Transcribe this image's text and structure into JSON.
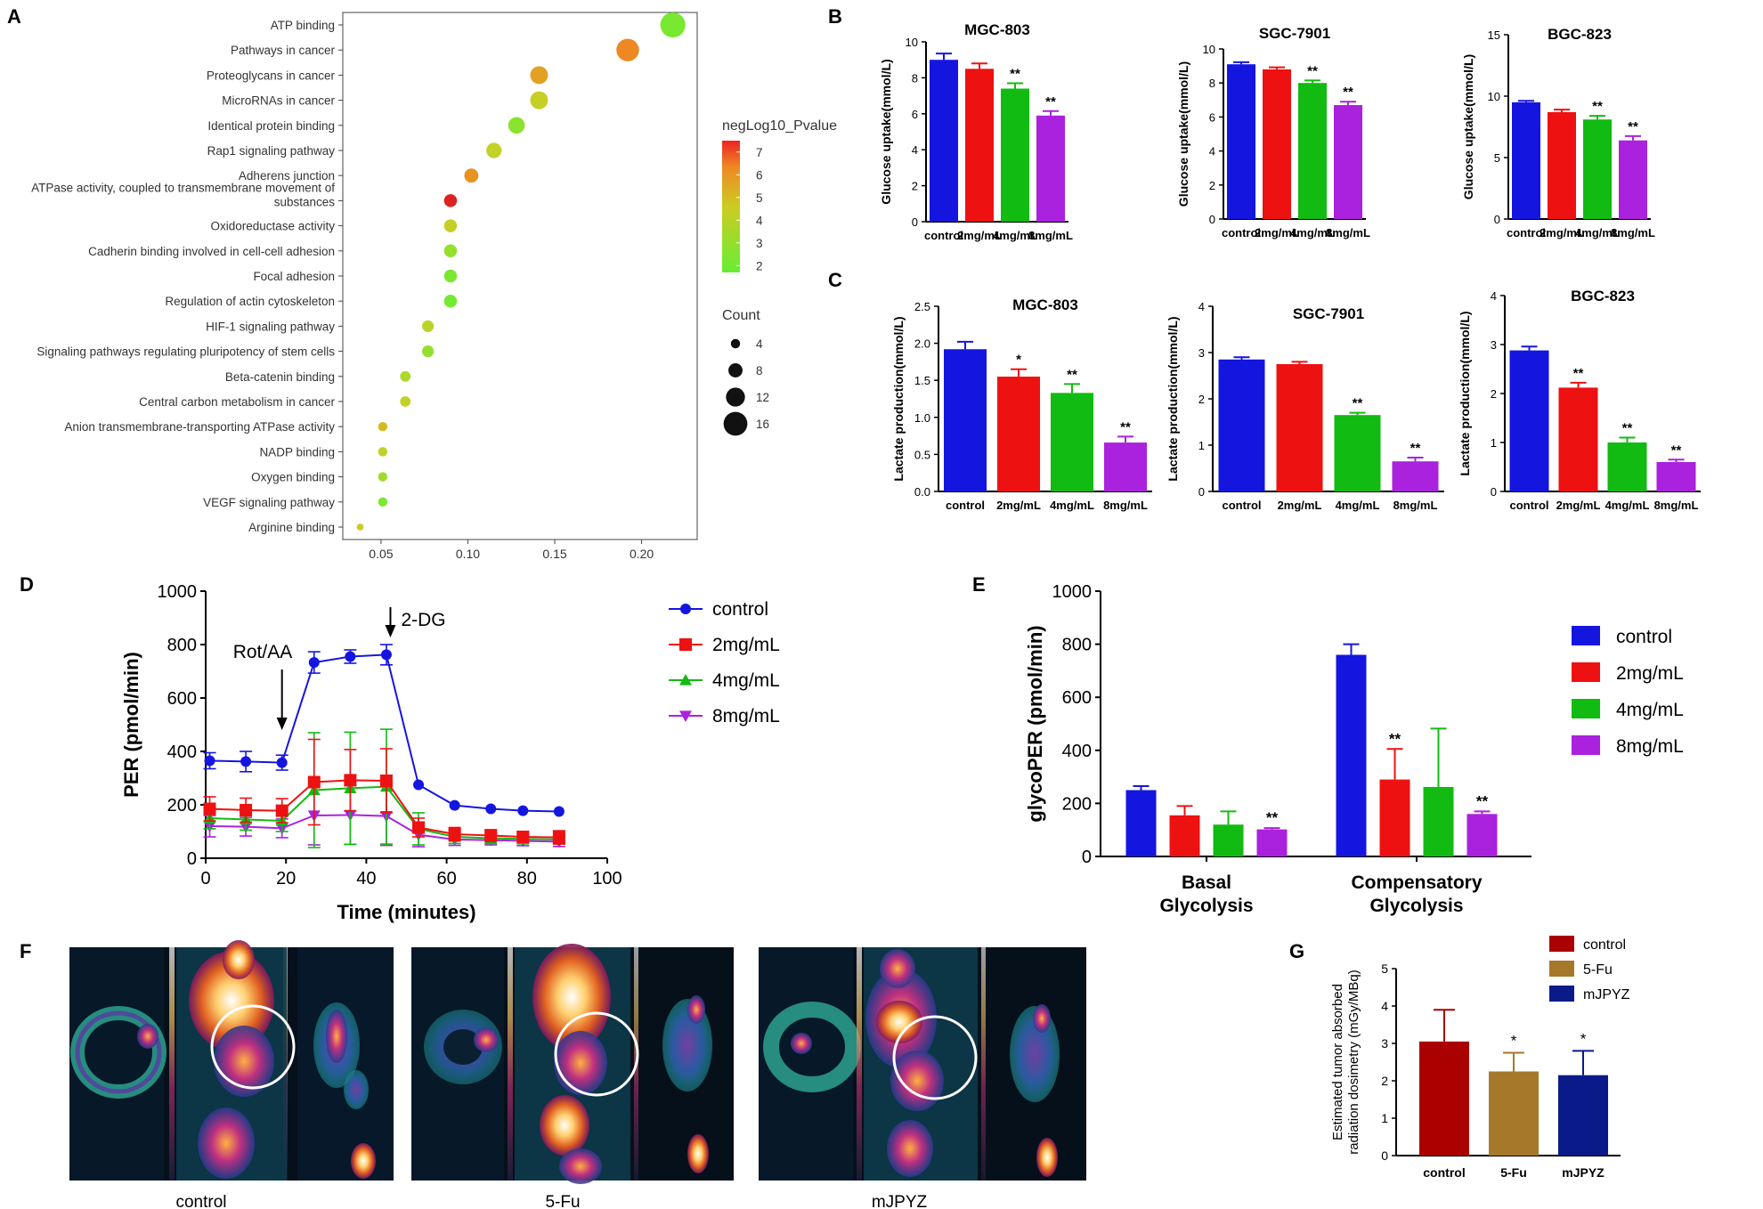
{
  "panels": {
    "A": {
      "letter": "A",
      "chart_data": {
        "type": "scatter",
        "categories": [
          "ATP binding",
          "Pathways in cancer",
          "Proteoglycans in cancer",
          "MicroRNAs in cancer",
          "Identical protein binding",
          "Rap1 signaling pathway",
          "Adherens junction",
          "ATPase activity, coupled to transmembrane movement of substances",
          "Oxidoreductase activity",
          "Cadherin binding involved in cell-cell adhesion",
          "Focal adhesion",
          "Regulation of actin cytoskeleton",
          "HIF-1 signaling pathway",
          "Signaling pathways regulating pluripotency of stem cells",
          "Beta-catenin binding",
          "Central carbon metabolism in cancer",
          "Anion transmembrane-transporting ATPase activity",
          "NADP binding",
          "Oxygen binding",
          "VEGF signaling pathway",
          "Arginine binding"
        ],
        "x": [
          0.218,
          0.192,
          0.141,
          0.141,
          0.128,
          0.115,
          0.102,
          0.09,
          0.09,
          0.09,
          0.09,
          0.09,
          0.077,
          0.077,
          0.064,
          0.064,
          0.051,
          0.051,
          0.051,
          0.051,
          0.038
        ],
        "count": [
          17,
          15,
          11,
          11,
          10,
          9,
          8,
          7,
          7,
          7,
          7,
          7,
          6,
          6,
          5,
          5,
          4,
          4,
          4,
          4,
          2
        ],
        "negLog10_Pvalue": [
          2.3,
          5.8,
          5.4,
          4.2,
          2.6,
          3.8,
          5.6,
          7.2,
          4.1,
          2.8,
          2.4,
          2.2,
          3.4,
          2.8,
          3.2,
          3.8,
          5.0,
          3.6,
          3.0,
          2.4,
          4.6
        ],
        "xticks": [
          0.05,
          0.1,
          0.15,
          0.2
        ],
        "xtick_labels": [
          "0.05",
          "0.10",
          "0.15",
          "0.20"
        ],
        "xlim": [
          0.028,
          0.232
        ],
        "color_legend": {
          "title": "negLog10_Pvalue",
          "ticks": [
            7,
            6,
            5,
            4,
            3,
            2
          ],
          "range": [
            1.7,
            7.5
          ],
          "colors": [
            "#66ee33",
            "#dd2222"
          ]
        },
        "size_legend": {
          "title": "Count",
          "values": [
            4,
            8,
            12,
            16
          ]
        },
        "xlabel": "",
        "ylabel": ""
      }
    },
    "B": {
      "letter": "B",
      "charts": [
        {
          "type": "bar",
          "title": "MGC-803",
          "ylabel": "Glucose uptake(mmol/L)",
          "categories": [
            "control",
            "2mg/mL",
            "4mg/mL",
            "8mg/mL"
          ],
          "values": [
            9.0,
            8.5,
            7.4,
            5.9
          ],
          "errors": [
            0.35,
            0.3,
            0.3,
            0.25
          ],
          "sig": [
            "",
            "",
            "**",
            "**"
          ],
          "ylim": [
            0,
            10
          ],
          "yticks": [
            0,
            2,
            4,
            6,
            8,
            10
          ],
          "ytick_labels": [
            "0",
            "2",
            "4",
            "6",
            "8",
            "10"
          ]
        },
        {
          "type": "bar",
          "title": "SGC-7901",
          "ylabel": "Glucose uptake(mmol/L)",
          "categories": [
            "control",
            "2mg/mL",
            "4mg/mL",
            "8mg/mL"
          ],
          "values": [
            9.1,
            8.8,
            8.0,
            6.7
          ],
          "errors": [
            0.12,
            0.12,
            0.15,
            0.2
          ],
          "sig": [
            "",
            "",
            "**",
            "**"
          ],
          "ylim": [
            0,
            10
          ],
          "yticks": [
            0,
            2,
            4,
            6,
            8,
            10
          ],
          "ytick_labels": [
            "0",
            "2",
            "4",
            "6",
            "8",
            "10"
          ]
        },
        {
          "type": "bar",
          "title": "BGC-823",
          "ylabel": "Glucose uptake(mmol/L)",
          "categories": [
            "control",
            "2mg/mL",
            "4mg/mL",
            "8mg/mL"
          ],
          "values": [
            9.5,
            8.7,
            8.1,
            6.4
          ],
          "errors": [
            0.12,
            0.2,
            0.3,
            0.35
          ],
          "sig": [
            "",
            "",
            "**",
            "**"
          ],
          "ylim": [
            0,
            15
          ],
          "yticks": [
            0,
            5,
            10,
            15
          ],
          "ytick_labels": [
            "0",
            "5",
            "10",
            "15"
          ]
        }
      ]
    },
    "C": {
      "letter": "C",
      "charts": [
        {
          "type": "bar",
          "title": "MGC-803",
          "ylabel": "Lactate production(mmol/L)",
          "categories": [
            "control",
            "2mg/mL",
            "4mg/mL",
            "8mg/mL"
          ],
          "values": [
            1.92,
            1.55,
            1.33,
            0.66
          ],
          "errors": [
            0.1,
            0.1,
            0.12,
            0.08
          ],
          "sig": [
            "",
            "*",
            "**",
            "**"
          ],
          "ylim": [
            0,
            2.5
          ],
          "yticks": [
            0,
            0.5,
            1.0,
            1.5,
            2.0,
            2.5
          ],
          "ytick_labels": [
            "0.0",
            "0.5",
            "1.0",
            "1.5",
            "2.0",
            "2.5"
          ]
        },
        {
          "type": "bar",
          "title": "SGC-7901",
          "ylabel": "Lactate production(mmol/L)",
          "categories": [
            "control",
            "2mg/mL",
            "4mg/mL",
            "8mg/mL"
          ],
          "values": [
            2.85,
            2.75,
            1.65,
            0.65
          ],
          "errors": [
            0.05,
            0.05,
            0.05,
            0.08
          ],
          "sig": [
            "",
            "",
            "**",
            "**"
          ],
          "ylim": [
            0,
            4
          ],
          "yticks": [
            0,
            1,
            2,
            3,
            4
          ],
          "ytick_labels": [
            "0",
            "1",
            "2",
            "3",
            "4"
          ]
        },
        {
          "type": "bar",
          "title": "BGC-823",
          "ylabel": "Lactate production(mmol/L)",
          "categories": [
            "control",
            "2mg/mL",
            "4mg/mL",
            "8mg/mL"
          ],
          "values": [
            2.88,
            2.12,
            1.0,
            0.6
          ],
          "errors": [
            0.08,
            0.1,
            0.1,
            0.05
          ],
          "sig": [
            "",
            "**",
            "**",
            "**"
          ],
          "ylim": [
            0,
            4
          ],
          "yticks": [
            0,
            1,
            2,
            3,
            4
          ],
          "ytick_labels": [
            "0",
            "1",
            "2",
            "3",
            "4"
          ]
        }
      ]
    },
    "D": {
      "letter": "D",
      "chart_data": {
        "type": "line",
        "xlabel": "Time (minutes)",
        "ylabel": "PER (pmol/min)",
        "xlim": [
          0,
          100
        ],
        "ylim": [
          0,
          1000
        ],
        "xticks": [
          0,
          20,
          40,
          60,
          80,
          100
        ],
        "yticks": [
          0,
          200,
          400,
          600,
          800,
          1000
        ],
        "xtick_labels": [
          "0",
          "20",
          "40",
          "60",
          "80",
          "100"
        ],
        "ytick_labels": [
          "0",
          "200",
          "400",
          "600",
          "800",
          "1000"
        ],
        "x": [
          1,
          10,
          19,
          27,
          36,
          45,
          53,
          62,
          71,
          79,
          88
        ],
        "series": [
          {
            "name": "control",
            "color": "#1515e0",
            "marker": "circle",
            "values": [
              365,
              362,
              358,
              733,
              755,
              762,
              275,
              198,
              185,
              178,
              175
            ],
            "errors": [
              30,
              38,
              28,
              40,
              25,
              38,
              0,
              0,
              0,
              0,
              0
            ]
          },
          {
            "name": "2mg/mL",
            "color": "#ee1111",
            "marker": "square",
            "values": [
              185,
              180,
              178,
              285,
              292,
              290,
              115,
              90,
              85,
              80,
              78
            ],
            "errors": [
              45,
              45,
              45,
              160,
              115,
              120,
              35,
              25,
              22,
              20,
              25
            ]
          },
          {
            "name": "4mg/mL",
            "color": "#11bb11",
            "marker": "triangle",
            "values": [
              150,
              145,
              140,
              255,
              262,
              268,
              110,
              80,
              75,
              72,
              70
            ],
            "errors": [
              40,
              40,
              40,
              215,
              210,
              215,
              60,
              25,
              20,
              18,
              15
            ]
          },
          {
            "name": "8mg/mL",
            "color": "#aa22dd",
            "marker": "triangle-down",
            "values": [
              120,
              118,
              112,
              160,
              162,
              158,
              88,
              70,
              68,
              65,
              62
            ],
            "errors": [
              40,
              35,
              35,
              110,
              110,
              110,
              45,
              22,
              18,
              18,
              18
            ]
          }
        ],
        "annotations": [
          {
            "label": "Rot/AA",
            "x": 19
          },
          {
            "label": "2-DG",
            "x": 46
          }
        ]
      }
    },
    "E": {
      "letter": "E",
      "chart_data": {
        "type": "bar",
        "ylabel": "glycoPER (pmol/min)",
        "categories": [
          "Basal\nGlycolysis",
          "Compensatory\nGlycolysis"
        ],
        "category_lines": [
          [
            "Basal",
            "Glycolysis"
          ],
          [
            "Compensatory",
            "Glycolysis"
          ]
        ],
        "ylim": [
          0,
          1000
        ],
        "yticks": [
          0,
          200,
          400,
          600,
          800,
          1000
        ],
        "ytick_labels": [
          "0",
          "200",
          "400",
          "600",
          "800",
          "1000"
        ],
        "series": [
          {
            "name": "control",
            "color": "#1515e0",
            "values": [
              250,
              760
            ],
            "errors": [
              15,
              40
            ],
            "sig": [
              "",
              ""
            ]
          },
          {
            "name": "2mg/mL",
            "color": "#ee1111",
            "values": [
              155,
              290
            ],
            "errors": [
              35,
              115
            ],
            "sig": [
              "",
              "**"
            ]
          },
          {
            "name": "4mg/mL",
            "color": "#11bb11",
            "values": [
              120,
              262
            ],
            "errors": [
              50,
              220
            ],
            "sig": [
              "",
              ""
            ]
          },
          {
            "name": "8mg/mL",
            "color": "#aa22dd",
            "values": [
              102,
              160
            ],
            "errors": [
              5,
              10
            ],
            "sig": [
              "**",
              "**"
            ]
          }
        ]
      }
    },
    "F": {
      "letter": "F",
      "captions": [
        "control",
        "5-Fu",
        "mJPYZ"
      ]
    },
    "G": {
      "letter": "G",
      "chart_data": {
        "type": "bar",
        "ylabel": "Estimated tumor absorbed radiation dosimetry (mGy/MBq)",
        "ylabel_lines": [
          "Estimated tumor absorbed",
          "radiation dosimetry (mGy/MBq)"
        ],
        "categories": [
          "control",
          "5-Fu",
          "mJPYZ"
        ],
        "values": [
          3.05,
          2.25,
          2.15
        ],
        "errors": [
          0.85,
          0.5,
          0.65
        ],
        "colors": [
          "#aa0000",
          "#a6782a",
          "#0a1a88"
        ],
        "sig": [
          "",
          "*",
          "*"
        ],
        "ylim": [
          0,
          5
        ],
        "yticks": [
          0,
          1,
          2,
          3,
          4,
          5
        ],
        "ytick_labels": [
          "0",
          "1",
          "2",
          "3",
          "4",
          "5"
        ],
        "legend": [
          "control",
          "5-Fu",
          "mJPYZ"
        ]
      }
    }
  }
}
